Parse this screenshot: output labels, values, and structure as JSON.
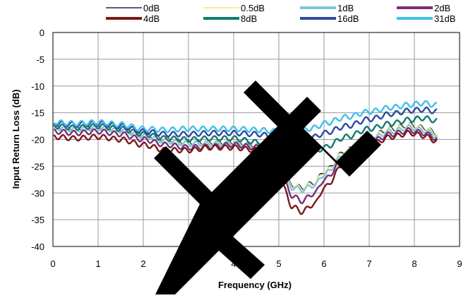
{
  "chart_data": {
    "type": "line",
    "xlabel": "Frequency (GHz)",
    "ylabel": "Input Return Loss (dB)",
    "xlim": [
      0,
      9
    ],
    "ylim": [
      -40,
      0
    ],
    "x_ticks": [
      "0",
      "1",
      "2",
      "3",
      "4",
      "5",
      "6",
      "7",
      "8",
      "9"
    ],
    "y_ticks": [
      "0",
      "-5",
      "-10",
      "-15",
      "-20",
      "-25",
      "-30",
      "-35",
      "-40"
    ],
    "grid": true,
    "legend_position": "top",
    "series": [
      {
        "name": "0dB",
        "color": "#1f2a5c",
        "width": 1.6,
        "x": [
          0.02,
          0.5,
          1.0,
          1.5,
          2.0,
          2.5,
          3.0,
          3.5,
          4.0,
          4.5,
          5.0,
          5.3,
          5.5,
          5.8,
          6.0,
          6.5,
          7.0,
          7.5,
          7.9,
          8.2,
          8.5
        ],
        "y": [
          -17.5,
          -17.8,
          -17.5,
          -18.0,
          -19.0,
          -20.0,
          -20.5,
          -20.5,
          -20.5,
          -21.0,
          -24.0,
          -28.5,
          -29.0,
          -28.0,
          -26.0,
          -22.0,
          -19.5,
          -18.0,
          -17.3,
          -17.8,
          -18.8
        ]
      },
      {
        "name": "0.5dB",
        "color": "#f2e37a",
        "width": 1.6,
        "x": [
          0.02,
          0.5,
          1.0,
          1.5,
          2.0,
          2.5,
          3.0,
          3.5,
          4.0,
          4.5,
          5.0,
          5.3,
          5.5,
          5.8,
          6.0,
          6.5,
          7.0,
          7.5,
          7.9,
          8.2,
          8.5
        ],
        "y": [
          -17.6,
          -17.9,
          -17.6,
          -18.1,
          -19.1,
          -20.1,
          -20.6,
          -20.6,
          -20.6,
          -21.1,
          -24.1,
          -28.6,
          -29.1,
          -28.1,
          -26.1,
          -22.1,
          -19.6,
          -18.1,
          -17.4,
          -17.9,
          -18.9
        ]
      },
      {
        "name": "1dB",
        "color": "#7fc6d8",
        "width": 2.4,
        "x": [
          0.02,
          0.5,
          1.0,
          1.5,
          2.0,
          2.5,
          3.0,
          3.5,
          4.0,
          4.5,
          5.0,
          5.3,
          5.5,
          5.8,
          6.0,
          6.5,
          7.0,
          7.5,
          7.9,
          8.2,
          8.5
        ],
        "y": [
          -17.8,
          -18.1,
          -17.8,
          -18.3,
          -19.3,
          -20.3,
          -20.8,
          -20.8,
          -20.8,
          -21.3,
          -24.5,
          -29.0,
          -29.4,
          -28.5,
          -26.5,
          -22.5,
          -20.0,
          -18.5,
          -17.8,
          -18.3,
          -19.3
        ]
      },
      {
        "name": "2dB",
        "color": "#7b2d7a",
        "width": 2.4,
        "x": [
          0.02,
          0.5,
          1.0,
          1.5,
          2.0,
          2.5,
          3.0,
          3.5,
          4.0,
          4.5,
          5.0,
          5.3,
          5.5,
          5.8,
          6.0,
          6.5,
          7.0,
          7.5,
          7.9,
          8.2,
          8.5
        ],
        "y": [
          -18.5,
          -18.8,
          -18.5,
          -19.0,
          -20.0,
          -21.0,
          -21.5,
          -21.3,
          -21.0,
          -21.5,
          -25.5,
          -30.5,
          -31.5,
          -30.0,
          -27.5,
          -23.0,
          -20.5,
          -19.0,
          -18.3,
          -18.8,
          -19.8
        ]
      },
      {
        "name": "4dB",
        "color": "#7a1a1a",
        "width": 2.4,
        "x": [
          0.02,
          0.5,
          1.0,
          1.5,
          2.0,
          2.5,
          3.0,
          3.5,
          4.0,
          4.5,
          5.0,
          5.3,
          5.5,
          5.8,
          6.0,
          6.5,
          7.0,
          7.5,
          7.9,
          8.2,
          8.5
        ],
        "y": [
          -19.5,
          -19.8,
          -19.5,
          -20.0,
          -21.0,
          -22.0,
          -22.0,
          -21.5,
          -21.5,
          -22.0,
          -27.0,
          -32.5,
          -33.5,
          -32.0,
          -29.0,
          -24.0,
          -21.0,
          -19.5,
          -18.8,
          -19.3,
          -20.3
        ]
      },
      {
        "name": "8dB",
        "color": "#127a70",
        "width": 2.4,
        "x": [
          0.02,
          0.5,
          1.0,
          1.5,
          2.0,
          2.5,
          3.0,
          3.5,
          4.0,
          4.5,
          5.0,
          5.3,
          5.5,
          5.8,
          6.0,
          6.5,
          7.0,
          7.5,
          7.9,
          8.2,
          8.5
        ],
        "y": [
          -17.5,
          -17.8,
          -17.5,
          -18.0,
          -19.0,
          -19.8,
          -20.0,
          -19.8,
          -19.8,
          -20.5,
          -21.8,
          -22.8,
          -23.0,
          -22.5,
          -21.5,
          -19.5,
          -18.0,
          -17.0,
          -16.3,
          -16.0,
          -16.5
        ]
      },
      {
        "name": "16dB",
        "color": "#2e4a9e",
        "width": 2.4,
        "x": [
          0.02,
          0.5,
          1.0,
          1.5,
          2.0,
          2.5,
          3.0,
          3.5,
          4.0,
          4.5,
          5.0,
          5.3,
          5.5,
          5.8,
          6.0,
          6.5,
          7.0,
          7.5,
          7.9,
          8.2,
          8.5
        ],
        "y": [
          -17.0,
          -17.2,
          -17.0,
          -17.5,
          -18.5,
          -19.0,
          -19.0,
          -18.8,
          -18.8,
          -19.0,
          -19.6,
          -19.8,
          -19.8,
          -19.5,
          -18.8,
          -17.5,
          -16.2,
          -15.2,
          -14.6,
          -14.4,
          -14.8
        ]
      },
      {
        "name": "31dB",
        "color": "#3fbfec",
        "width": 2.4,
        "x": [
          0.02,
          0.5,
          1.0,
          1.5,
          2.0,
          2.5,
          3.0,
          3.5,
          4.0,
          4.5,
          5.0,
          5.3,
          5.5,
          5.8,
          6.0,
          6.5,
          7.0,
          7.5,
          7.9,
          8.2,
          8.5
        ],
        "y": [
          -16.8,
          -17.0,
          -16.8,
          -17.2,
          -18.0,
          -18.2,
          -18.0,
          -18.0,
          -18.0,
          -18.2,
          -18.5,
          -18.5,
          -18.3,
          -17.8,
          -17.0,
          -15.8,
          -14.8,
          -14.0,
          -13.5,
          -13.2,
          -13.6
        ]
      }
    ]
  }
}
